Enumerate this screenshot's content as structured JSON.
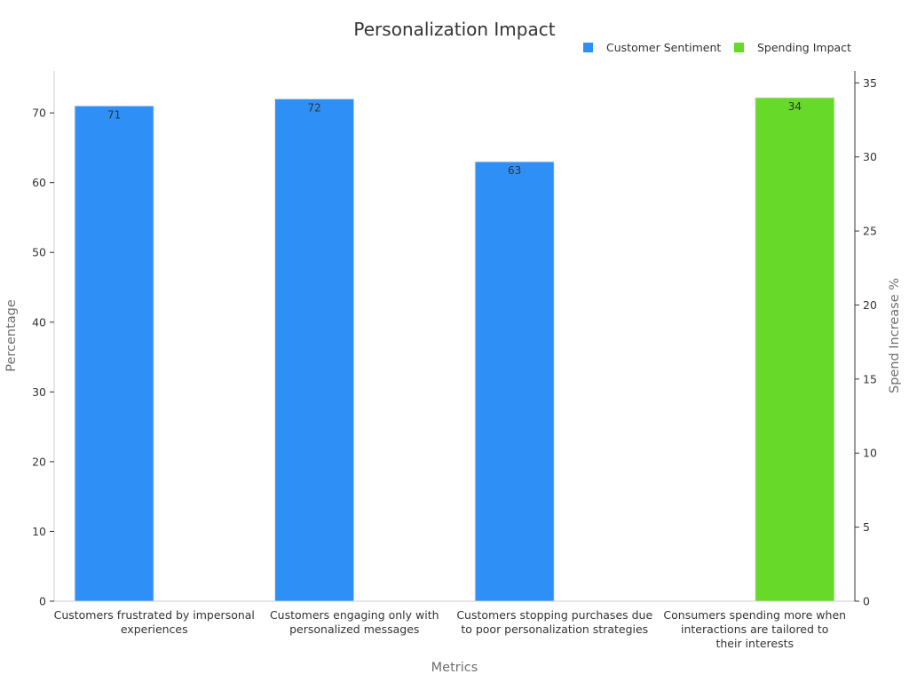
{
  "chart_data": {
    "type": "bar",
    "title": "Personalization Impact",
    "xlabel": "Metrics",
    "ylabel": "Percentage",
    "y2label": "Spend Increase %",
    "categories": [
      [
        "Customers frustrated by impersonal",
        "experiences"
      ],
      [
        "Customers engaging only with",
        "personalized messages"
      ],
      [
        "Customers stopping purchases due",
        "to poor personalization strategies"
      ],
      [
        "Consumers spending more when",
        "interactions are tailored to",
        "their interests"
      ]
    ],
    "series": [
      {
        "name": "Customer Sentiment",
        "axis": "left",
        "color": "#2e90f7",
        "values": [
          71,
          72,
          63,
          null
        ],
        "labels": [
          "71",
          "72",
          "63",
          ""
        ]
      },
      {
        "name": "Spending Impact",
        "axis": "right",
        "color": "#67d928",
        "values": [
          null,
          null,
          null,
          34
        ],
        "labels": [
          "",
          "",
          "",
          "34"
        ]
      }
    ],
    "ylim": [
      0,
      76
    ],
    "y2lim": [
      0,
      35.8
    ],
    "yticks": [
      0,
      10,
      20,
      30,
      40,
      50,
      60,
      70
    ],
    "y2ticks": [
      0,
      5,
      10,
      15,
      20,
      25,
      30,
      35
    ],
    "legend": "top-right",
    "grid": false
  }
}
